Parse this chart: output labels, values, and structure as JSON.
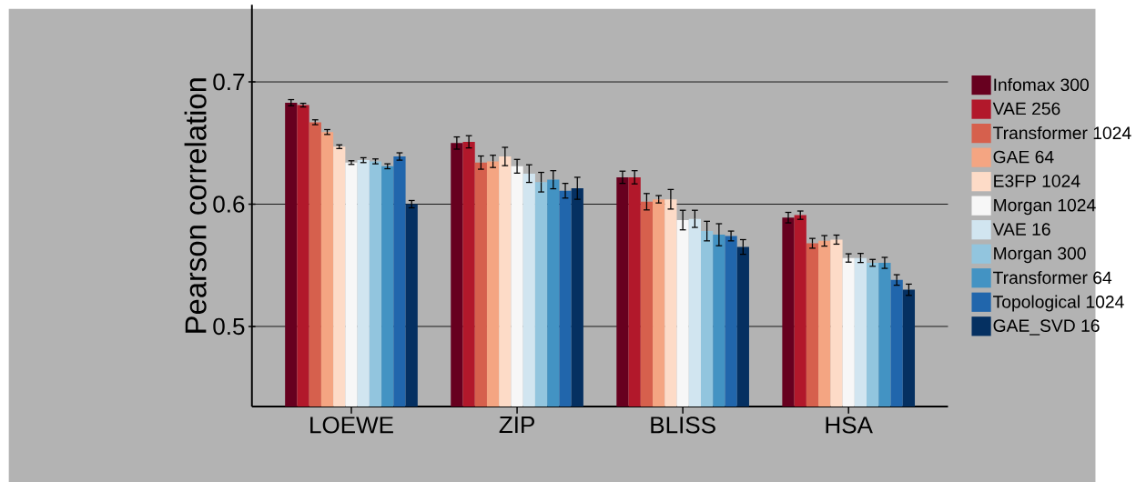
{
  "chart_data": {
    "type": "bar",
    "ylabel": "Pearson correlation",
    "categories": [
      "LOEWE",
      "ZIP",
      "BLISS",
      "HSA"
    ],
    "ylim": [
      0.4345,
      0.763
    ],
    "yticks": [
      0.5,
      0.6,
      0.7
    ],
    "grid": "y",
    "legend": "right",
    "series": [
      {
        "name": "Infomax 300",
        "color": "#67001f",
        "values": [
          0.683,
          0.65,
          0.622,
          0.589
        ],
        "errors": [
          0.0025,
          0.005,
          0.005,
          0.0043
        ]
      },
      {
        "name": "VAE 256",
        "color": "#b2182b",
        "values": [
          0.681,
          0.651,
          0.622,
          0.591
        ],
        "errors": [
          0.0015,
          0.005,
          0.0054,
          0.0034
        ]
      },
      {
        "name": "Transformer 1024",
        "color": "#d6604d",
        "values": [
          0.667,
          0.634,
          0.602,
          0.568
        ],
        "errors": [
          0.002,
          0.0054,
          0.0067,
          0.004
        ]
      },
      {
        "name": "GAE 64",
        "color": "#f4a582",
        "values": [
          0.659,
          0.635,
          0.604,
          0.57
        ],
        "errors": [
          0.002,
          0.005,
          0.003,
          0.0043
        ]
      },
      {
        "name": "E3FP 1024",
        "color": "#fddbc7",
        "values": [
          0.647,
          0.639,
          0.604,
          0.571
        ],
        "errors": [
          0.0015,
          0.0075,
          0.008,
          0.0037
        ]
      },
      {
        "name": "Morgan 1024",
        "color": "#f7f7f7",
        "values": [
          0.634,
          0.631,
          0.587,
          0.556
        ],
        "errors": [
          0.0015,
          0.0056,
          0.008,
          0.0034
        ]
      },
      {
        "name": "VAE 16",
        "color": "#d1e5f0",
        "values": [
          0.636,
          0.625,
          0.588,
          0.556
        ],
        "errors": [
          0.002,
          0.0072,
          0.007,
          0.0037
        ]
      },
      {
        "name": "Morgan 300",
        "color": "#92c5de",
        "values": [
          0.635,
          0.618,
          0.578,
          0.552
        ],
        "errors": [
          0.002,
          0.008,
          0.008,
          0.0028
        ]
      },
      {
        "name": "Transformer 64",
        "color": "#4393c3",
        "values": [
          0.631,
          0.62,
          0.575,
          0.552
        ],
        "errors": [
          0.002,
          0.0074,
          0.009,
          0.0045
        ]
      },
      {
        "name": "Topological 1024",
        "color": "#2166ac",
        "values": [
          0.639,
          0.611,
          0.574,
          0.538
        ],
        "errors": [
          0.003,
          0.006,
          0.004,
          0.0043
        ]
      },
      {
        "name": "GAE_SVD 16",
        "color": "#053061",
        "values": [
          0.6,
          0.613,
          0.565,
          0.53
        ],
        "errors": [
          0.003,
          0.009,
          0.006,
          0.0046
        ]
      }
    ]
  }
}
